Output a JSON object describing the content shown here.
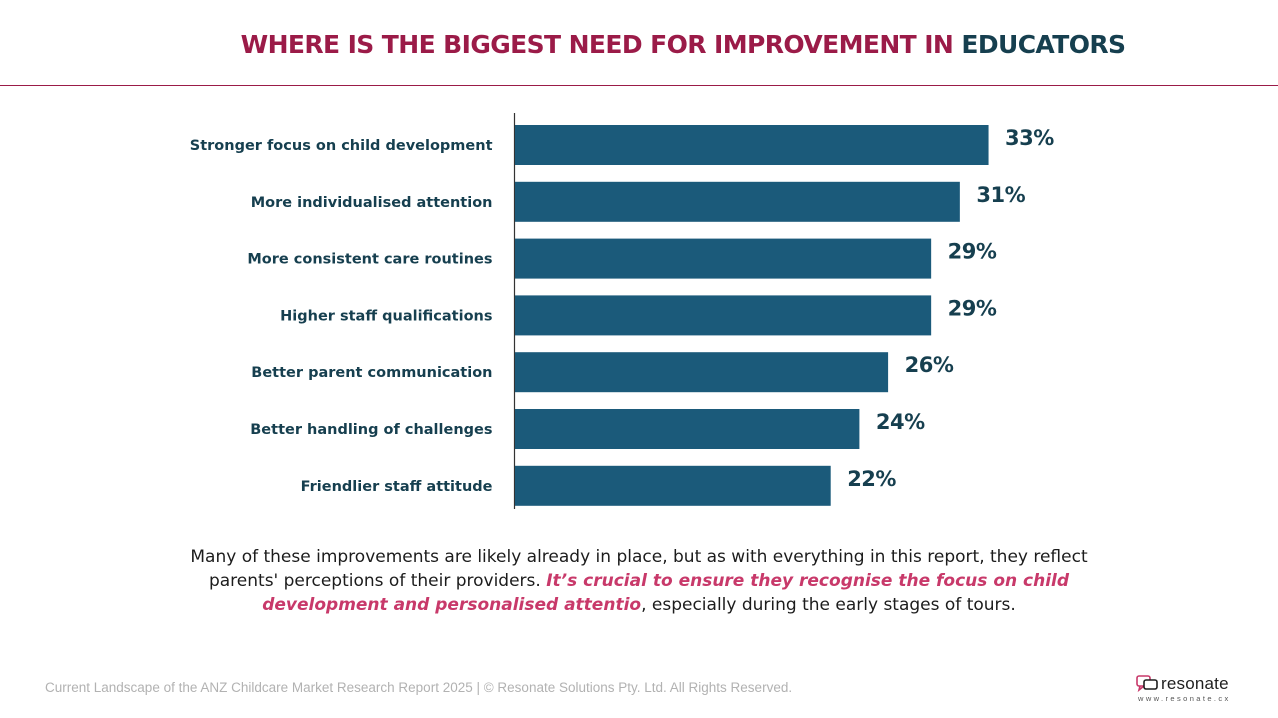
{
  "header": {
    "title_main": "WHERE IS THE BIGGEST NEED FOR IMPROVEMENT IN",
    "title_accent": "EDUCATORS"
  },
  "colors": {
    "title": "#9b1b48",
    "accent": "#163f4f",
    "bar": "#1b5a7a",
    "highlight": "#c8396a"
  },
  "chart_data": {
    "type": "bar",
    "orientation": "horizontal",
    "categories": [
      "Stronger focus on child development",
      "More individualised attention",
      "More consistent care routines",
      "Higher staff qualifications",
      "Better parent communication",
      "Better handling of challenges",
      "Friendlier staff attitude"
    ],
    "values": [
      33,
      31,
      29,
      29,
      26,
      24,
      22
    ],
    "value_labels": [
      "33%",
      "31%",
      "29%",
      "29%",
      "26%",
      "24%",
      "22%"
    ],
    "unit": "%",
    "xlim": [
      0,
      40
    ],
    "grid": false,
    "legend": "none"
  },
  "commentary": {
    "text_1": "Many of these improvements are likely already in place, but as with everything in this report, they reflect parents' perceptions of their providers. ",
    "emphasis": "It’s crucial to ensure they recognise the focus on child development and personalised attentio",
    "text_2": ", especially during the early stages of tours."
  },
  "footer": {
    "text": "Current Landscape of the ANZ Childcare Market Research Report 2025 | © Resonate Solutions Pty. Ltd. All Rights Reserved."
  },
  "logo": {
    "name": "resonate",
    "url": "www.resonate.cx",
    "icon": "chat-bubbles-icon"
  }
}
